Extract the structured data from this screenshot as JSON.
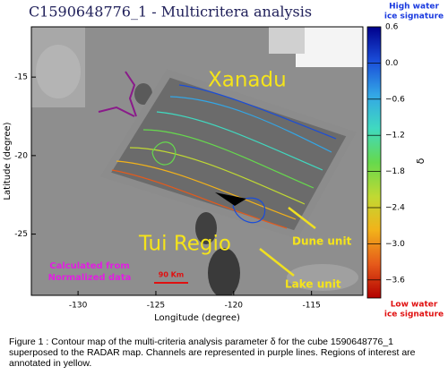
{
  "chart_data": {
    "type": "contour-map",
    "title": "C1590648776_1 -  Multicritera analysis",
    "xlabel": "Longitude (degree)",
    "ylabel": "Latitude (degree)",
    "xlim": [
      -133,
      -111.7
    ],
    "ylim": [
      -28.9,
      -11.8
    ],
    "xticks": [
      -130,
      -125,
      -120,
      -115
    ],
    "yticks": [
      -15,
      -20,
      -25
    ],
    "colorbar": {
      "label": "δ",
      "lim": [
        -3.9,
        0.6
      ],
      "ticks": [
        {
          "value": 0.6,
          "label": "0.6"
        },
        {
          "value": 0,
          "label": "0.0"
        },
        {
          "value": -0.6,
          "label": "−0.6"
        },
        {
          "value": -1.2,
          "label": "−1.2"
        },
        {
          "value": -1.8,
          "label": "−1.8"
        },
        {
          "value": -2.4,
          "label": "−2.4"
        },
        {
          "value": -3.0,
          "label": "−3.0"
        },
        {
          "value": -3.6,
          "label": "−3.6"
        }
      ],
      "colors": [
        "#00008c",
        "#1a4dd9",
        "#33a6e6",
        "#40d9c0",
        "#66d94d",
        "#c0d933",
        "#f2b21a",
        "#e65a1a",
        "#b30000"
      ],
      "top_label": [
        "High water",
        "ice signature"
      ],
      "bottom_label": [
        "Low water",
        "ice signature"
      ]
    },
    "annotations": {
      "regions": [
        "Xanadu",
        "Tui Regio"
      ],
      "units": [
        "Dune unit",
        "Lake unit"
      ],
      "note": [
        "Calculated from",
        "Normalized data"
      ],
      "scale": "90 Km"
    },
    "caption": "Figure 1 : Contour map of the multi-criteria analysis parameter δ for the cube 1590648776_1 superposed to the RADAR map.  Channels are represented in purple lines. Regions of interest are annotated in yellow."
  }
}
